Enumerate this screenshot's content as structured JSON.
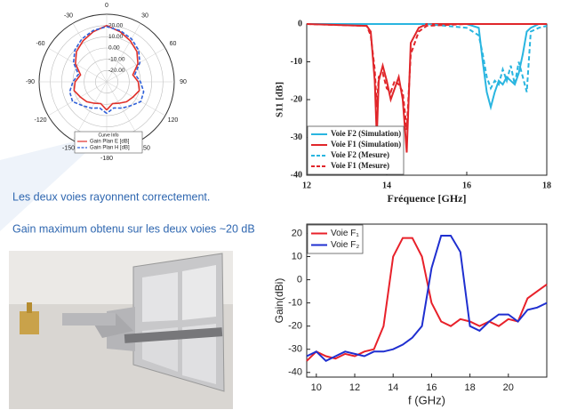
{
  "texts": [
    "Les deux voies rayonnent correctement.",
    "Gain maximum obtenu sur les deux voies ~20 dB"
  ],
  "chart_data": [
    {
      "type": "polar",
      "legend_title": "Curve Info",
      "x": [
        -180,
        -165,
        -150,
        -135,
        -120,
        -105,
        -90,
        -75,
        -60,
        -45,
        -30,
        -15,
        0,
        15,
        30,
        45,
        60,
        75,
        90,
        105,
        120,
        135,
        150,
        165,
        180
      ],
      "xticks": [
        -180,
        -150,
        -120,
        -90,
        -60,
        -30,
        0,
        30,
        60,
        90,
        120,
        150
      ],
      "ylim": [
        -30,
        30
      ],
      "yticks": [
        {
          "value": 20,
          "label": "20.00"
        },
        {
          "value": 10,
          "label": "10.00"
        },
        {
          "value": 0,
          "label": "0.00"
        },
        {
          "value": -10,
          "label": "-10.00"
        },
        {
          "value": -20,
          "label": "-20.00"
        }
      ],
      "series": [
        {
          "name": "Gain Plan E [dB]",
          "color": "#e0302a",
          "dash": false,
          "values": [
            -5,
            -10,
            -8,
            -5,
            -3,
            0,
            -2,
            -6,
            2,
            8,
            12,
            16,
            20,
            16,
            12,
            8,
            2,
            -6,
            -2,
            0,
            -3,
            -5,
            -8,
            -10,
            -5
          ]
        },
        {
          "name": "Gain Plan H [dB]",
          "color": "#2f5fd8",
          "dash": true,
          "values": [
            -2,
            -6,
            -3,
            0,
            5,
            4,
            0,
            -4,
            4,
            10,
            14,
            17,
            19,
            17,
            14,
            10,
            4,
            -4,
            0,
            4,
            5,
            0,
            -3,
            -6,
            -2
          ]
        }
      ]
    },
    {
      "type": "line",
      "xlabel": "Fréquence [GHz]",
      "ylabel": "S11 [dB]",
      "legend": "lower left",
      "xlim": [
        12,
        18
      ],
      "xticks": [
        12,
        14,
        16,
        18
      ],
      "ylim": [
        -40,
        0
      ],
      "yticks": [
        -40,
        -30,
        -20,
        -10,
        0
      ],
      "grid": false,
      "x": [
        12,
        13.5,
        13.6,
        13.7,
        13.75,
        13.8,
        13.9,
        14.0,
        14.1,
        14.2,
        14.3,
        14.4,
        14.5,
        14.6,
        14.8,
        15,
        16,
        16.3,
        16.4,
        16.5,
        16.6,
        16.7,
        16.8,
        16.9,
        17.0,
        17.1,
        17.2,
        17.3,
        17.4,
        17.5,
        17.6,
        17.8,
        18
      ],
      "series": [
        {
          "name": "Voie F2 (Simulation)",
          "color": "#29b5e0",
          "dash": false,
          "values": [
            0,
            0,
            0,
            0,
            0,
            0,
            0,
            0,
            0,
            0,
            0,
            0,
            0,
            0,
            0,
            0,
            0,
            -1,
            -10,
            -18,
            -22,
            -18,
            -15,
            -16,
            -14,
            -15,
            -16,
            -13,
            -8,
            -2,
            -1,
            0,
            0
          ]
        },
        {
          "name": "Voie F1 (Simulation)",
          "color": "#e0262a",
          "dash": false,
          "values": [
            0,
            -0.5,
            -2,
            -15,
            -30,
            -15,
            -11,
            -15,
            -20,
            -17,
            -14,
            -20,
            -34,
            -5,
            -1,
            0,
            0,
            0,
            0,
            0,
            0,
            0,
            0,
            0,
            0,
            0,
            0,
            0,
            0,
            0,
            0,
            0,
            0
          ]
        },
        {
          "name": "Voie F2 (Mesure)",
          "color": "#29b5e0",
          "dash": true,
          "values": [
            0,
            0,
            0,
            0,
            0,
            0,
            0,
            0,
            0,
            0,
            0,
            0,
            0,
            0,
            0,
            0,
            -1,
            -3,
            -8,
            -14,
            -17,
            -15,
            -16,
            -12,
            -15,
            -11,
            -16,
            -10,
            -14,
            -18,
            -2,
            -1,
            -0.5
          ]
        },
        {
          "name": "Voie F1 (Mesure)",
          "color": "#e0262a",
          "dash": true,
          "values": [
            0,
            -0.5,
            -3,
            -12,
            -22,
            -14,
            -13,
            -17,
            -18,
            -15,
            -16,
            -18,
            -28,
            -8,
            -2,
            -0.5,
            0,
            0,
            0,
            0,
            0,
            0,
            0,
            0,
            0,
            0,
            0,
            0,
            0,
            0,
            0,
            0,
            0
          ]
        }
      ]
    },
    {
      "type": "line",
      "xlabel": "f (GHz)",
      "ylabel": "Gain(dBi)",
      "legend": "upper left",
      "xlim": [
        9.5,
        22
      ],
      "xticks": [
        10,
        12,
        14,
        16,
        18,
        20
      ],
      "ylim": [
        -42,
        24
      ],
      "yticks": [
        -40,
        -30,
        -20,
        -10,
        0,
        10,
        20
      ],
      "grid": false,
      "x": [
        9.5,
        10,
        10.5,
        11,
        11.5,
        12,
        12.5,
        13,
        13.5,
        14,
        14.5,
        15,
        15.5,
        16,
        16.5,
        17,
        17.5,
        18,
        18.5,
        19,
        19.5,
        20,
        20.5,
        21,
        21.5,
        22
      ],
      "series": [
        {
          "name": "Voie F₁",
          "color": "#e8212a",
          "dash": false,
          "values": [
            -35,
            -31,
            -33,
            -34,
            -32,
            -33,
            -31,
            -30,
            -20,
            10,
            18,
            18,
            10,
            -10,
            -18,
            -20,
            -17,
            -18,
            -20,
            -18,
            -20,
            -17,
            -18,
            -8,
            -5,
            -2
          ]
        },
        {
          "name": "Voie F₂",
          "color": "#1f2fd0",
          "dash": false,
          "values": [
            -33,
            -31,
            -35,
            -33,
            -31,
            -32,
            -33,
            -31,
            -31,
            -30,
            -28,
            -25,
            -20,
            5,
            19,
            19,
            12,
            -20,
            -22,
            -18,
            -15,
            -15,
            -18,
            -13,
            -12,
            -10
          ]
        }
      ]
    }
  ]
}
